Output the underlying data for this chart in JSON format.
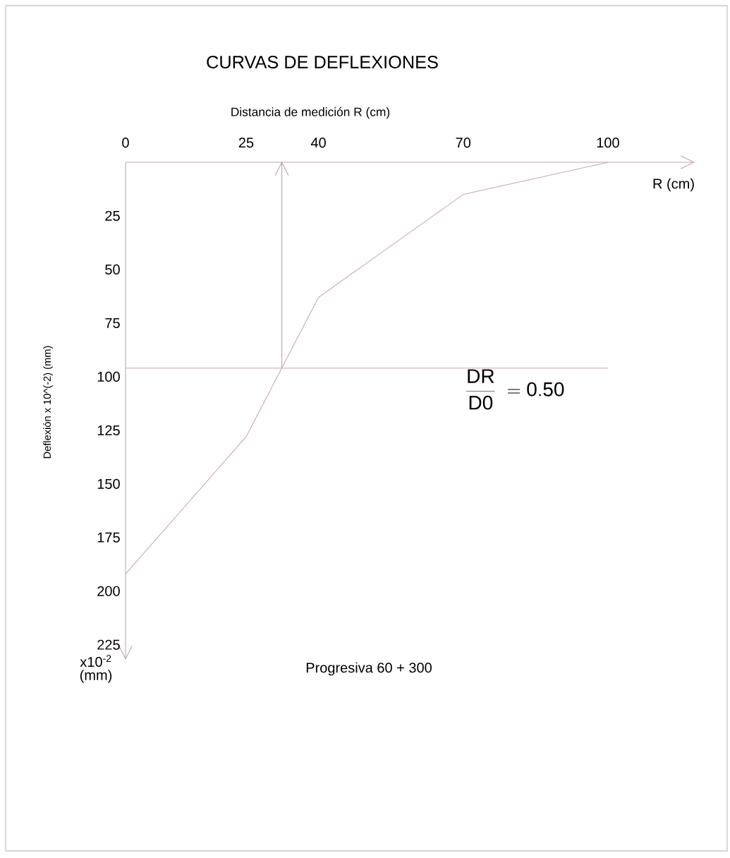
{
  "chart_data": {
    "type": "line",
    "title": "CURVAS DE DEFLEXIONES",
    "xlabel": "Distancia de medición R (cm)",
    "ylabel": "Deflexión x 10^(-2) (mm)",
    "x": [
      0,
      25,
      40,
      70,
      100
    ],
    "series": [
      {
        "color": "#c4a8b6",
        "values": [
          192,
          128,
          63,
          15,
          0
        ]
      }
    ],
    "xlim": [
      0,
      118
    ],
    "xticks": [
      0,
      25,
      40,
      70,
      100
    ],
    "ylim": [
      232,
      0
    ],
    "yticks": [
      25,
      50,
      75,
      100,
      125,
      150,
      175,
      200,
      225
    ],
    "ref_lines": [
      {
        "axis": "y",
        "value": 96,
        "color": "#c4a8b6"
      },
      {
        "axis": "x",
        "value": 32.4,
        "color": "#b8a0ae"
      }
    ],
    "annotations": [
      "R (cm)",
      "x10$^{-2}$ (mm)",
      "Progresiva 60 + 300",
      "\\frac{\\mathrm{DR}}{\\mathrm{D0}}\\ =\\mathrm{0.50}"
    ],
    "grid": false,
    "marker": "none",
    "line_style": "solid"
  }
}
